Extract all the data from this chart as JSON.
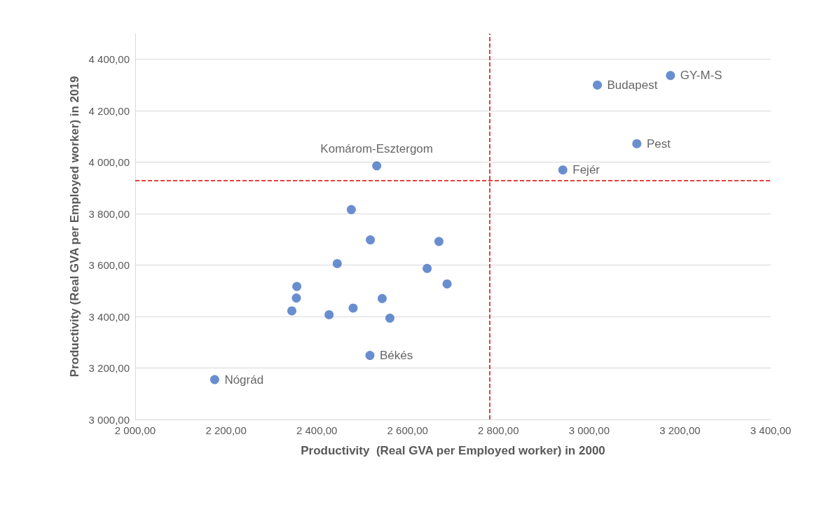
{
  "chart_data": {
    "type": "scatter",
    "xlabel": "Productivity  (Real GVA per Employed worker) in 2000",
    "ylabel": "Productivity (Real GVA per Employed worker) in 2019",
    "x": [
      3179,
      3018,
      3105,
      2942,
      2532,
      2476,
      2518,
      2669,
      2445,
      2643,
      2687,
      2356,
      2355,
      2544,
      2345,
      2480,
      2427,
      2561,
      2517,
      2175
    ],
    "series": [
      {
        "color": "#4472c4",
        "values": [
          4337,
          4300,
          4072,
          3970,
          3986,
          3816,
          3698,
          3692,
          3606,
          3587,
          3527,
          3517,
          3472,
          3470,
          3422,
          3433,
          3407,
          3394,
          3249,
          3155
        ]
      }
    ],
    "annotations": [
      {
        "text": "GY-M-S",
        "x": 3179,
        "y": 4337
      },
      {
        "text": "Budapest",
        "x": 3018,
        "y": 4300
      },
      {
        "text": "Pest",
        "x": 3105,
        "y": 4072
      },
      {
        "text": "Fejér",
        "x": 2942,
        "y": 3970
      },
      {
        "text": "Komárom-Esztergom",
        "x": 2532,
        "y": 3986
      },
      {
        "text": "Békés",
        "x": 2517,
        "y": 3249
      },
      {
        "text": "Nógrád",
        "x": 2175,
        "y": 3155
      }
    ],
    "ref_lines": [
      {
        "axis": "x",
        "value": 2780,
        "color": "#e00000",
        "line_style": "dashed"
      },
      {
        "axis": "y",
        "value": 3930,
        "color": "#e00000",
        "line_style": "dashed"
      }
    ],
    "xlim": [
      2000,
      3400
    ],
    "xticks": [
      {
        "value": 2000,
        "label": "2 000,00"
      },
      {
        "value": 2200,
        "label": "2 200,00"
      },
      {
        "value": 2400,
        "label": "2 400,00"
      },
      {
        "value": 2600,
        "label": "2 600,00"
      },
      {
        "value": 2800,
        "label": "2 800,00"
      },
      {
        "value": 3000,
        "label": "3 000,00"
      },
      {
        "value": 3200,
        "label": "3 200,00"
      },
      {
        "value": 3400,
        "label": "3 400,00"
      }
    ],
    "ylim": [
      3000,
      4500
    ],
    "yticks": [
      {
        "value": 3000,
        "label": "3 000,00"
      },
      {
        "value": 3200,
        "label": "3 200,00"
      },
      {
        "value": 3400,
        "label": "3 400,00"
      },
      {
        "value": 3600,
        "label": "3 600,00"
      },
      {
        "value": 3800,
        "label": "3 800,00"
      },
      {
        "value": 4000,
        "label": "4 000,00"
      },
      {
        "value": 4200,
        "label": "4 200,00"
      },
      {
        "value": 4400,
        "label": "4 400,00"
      }
    ],
    "grid": "y",
    "marker": "circle"
  }
}
